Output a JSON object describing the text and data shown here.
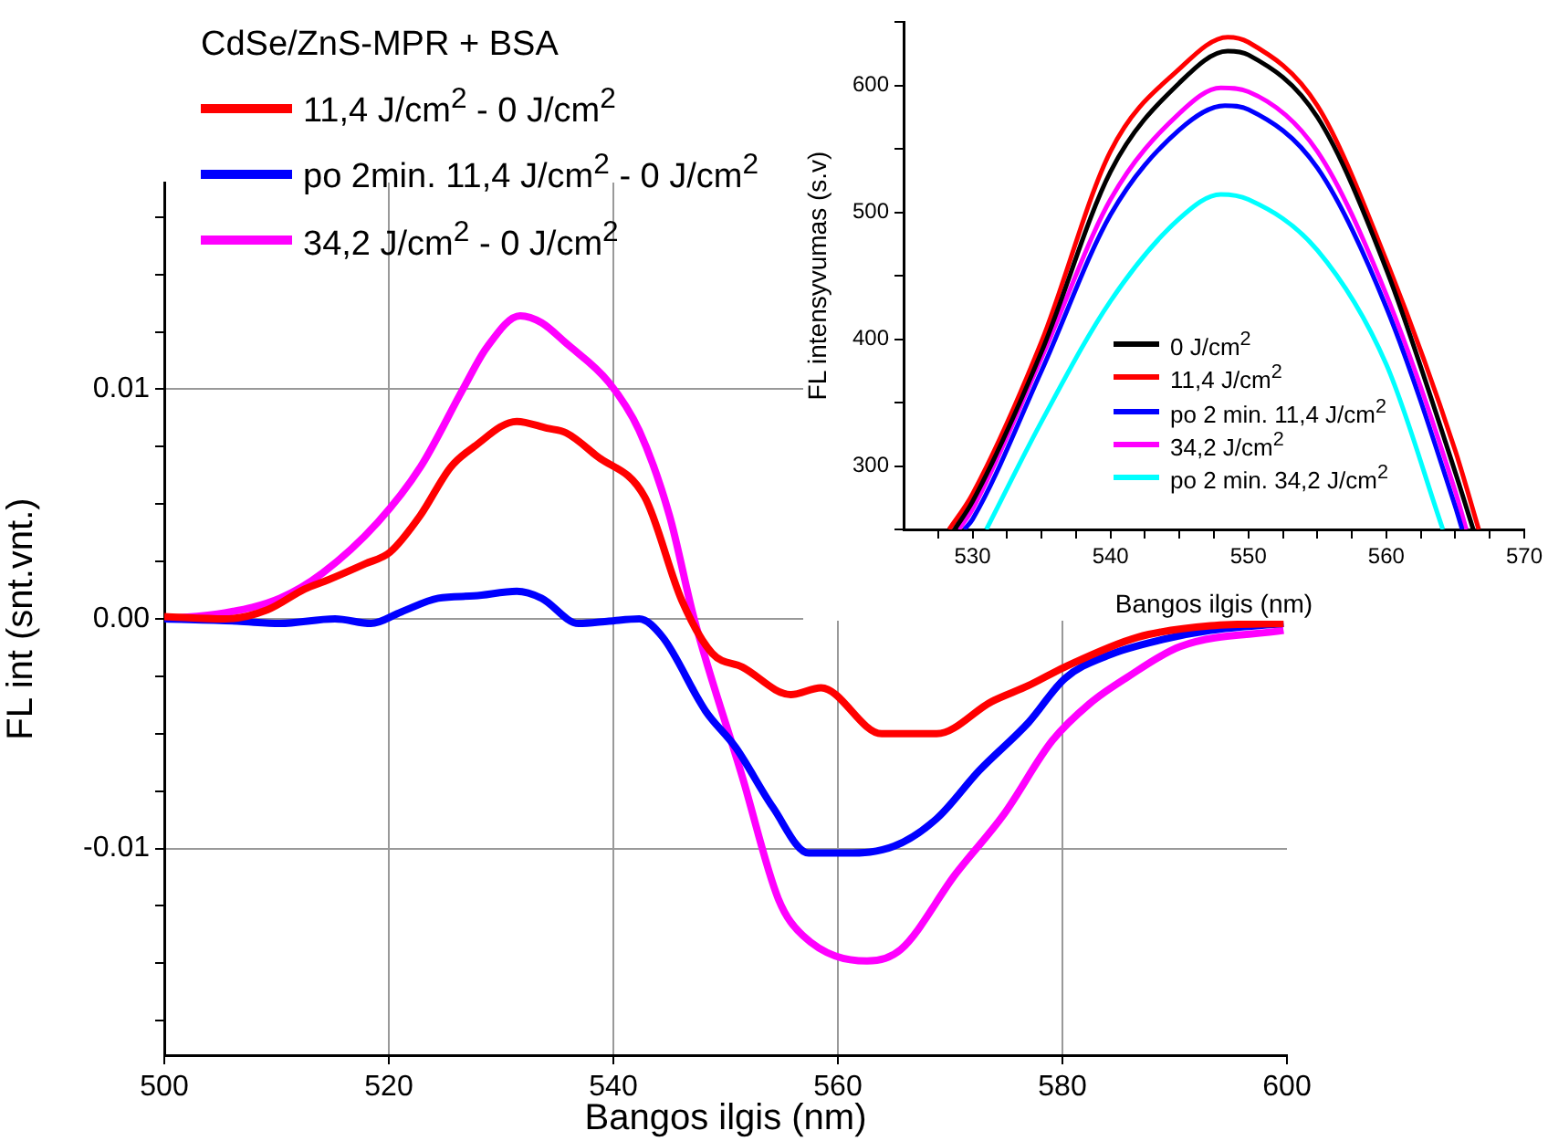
{
  "chart_data": [
    {
      "type": "line",
      "xlabel": "Bangos ilgis (nm)",
      "ylabel": "FL int (snt.vnt.)",
      "legend_title": "CdSe/ZnS-MPR + BSA",
      "legend": "top left",
      "grid": true,
      "marker": "none",
      "xlim": [
        500,
        600
      ],
      "xticks": [
        500,
        520,
        540,
        560,
        580,
        600
      ],
      "ylim": [
        -0.019,
        0.019
      ],
      "yticks": [
        {
          "value": -0.0175,
          "label": null
        },
        {
          "value": -0.015,
          "label": null
        },
        {
          "value": -0.0125,
          "label": null
        },
        {
          "value": -0.01,
          "label": "-0.01"
        },
        {
          "value": -0.0075,
          "label": null
        },
        {
          "value": -0.005,
          "label": null
        },
        {
          "value": -0.0025,
          "label": null
        },
        {
          "value": 0,
          "label": "0.00"
        },
        {
          "value": 0.0025,
          "label": null
        },
        {
          "value": 0.005,
          "label": null
        },
        {
          "value": 0.0075,
          "label": null
        },
        {
          "value": 0.01,
          "label": "0.01"
        },
        {
          "value": 0.0125,
          "label": null
        },
        {
          "value": 0.015,
          "label": null
        },
        {
          "value": 0.0175,
          "label": null
        }
      ],
      "series": [
        {
          "name": "11,4 J/cm$^{2}$ - 0 J/cm$^{2}$",
          "color": "#ff0000",
          "x": [
            500,
            505.4,
            509.2,
            512.5,
            514.6,
            517.9,
            520.1,
            522.8,
            525.5,
            527.6,
            531.4,
            534.1,
            535.8,
            538.5,
            542.8,
            546.1,
            548.8,
            551.5,
            555.8,
            558.5,
            563.9,
            568.8,
            573.7,
            577,
            580.2,
            586.7,
            593.2,
            599.7
          ],
          "values": [
            0.0001,
            0,
            0.0004,
            0.0013,
            0.0017,
            0.0024,
            0.0029,
            0.0045,
            0.0066,
            0.0075,
            0.0086,
            0.0083,
            0.0081,
            0.0071,
            0.0053,
            0.0008,
            -0.0015,
            -0.0021,
            -0.0033,
            -0.003,
            -0.005,
            -0.005,
            -0.0036,
            -0.0029,
            -0.0021,
            -0.0008,
            -0.0003,
            -0.0002
          ]
        },
        {
          "name": "po 2min. 11,4 J/cm$^{2}$ - 0 J/cm$^{2}$",
          "color": "#0000ff",
          "x": [
            500,
            506.5,
            510.3,
            515.2,
            518.4,
            521.1,
            524.4,
            527.6,
            531.4,
            533.6,
            536.9,
            539.6,
            542.3,
            544.4,
            548.2,
            550.9,
            554.2,
            557.4,
            560.7,
            565,
            568.8,
            572.6,
            577,
            580.2,
            584,
            588.9,
            593.2,
            599.7
          ],
          "values": [
            0,
            -0.0001,
            -0.0002,
            0,
            -0.0002,
            0.0003,
            0.0009,
            0.001,
            0.0012,
            0.0009,
            -0.0002,
            -0.0001,
            0,
            -0.0008,
            -0.004,
            -0.0056,
            -0.0082,
            -0.0102,
            -0.0102,
            -0.0099,
            -0.0087,
            -0.0066,
            -0.0045,
            -0.0026,
            -0.0016,
            -0.0009,
            -0.0005,
            -0.0002
          ]
        },
        {
          "name": "34,2 J/cm$^{2}$ - 0 J/cm$^{2}$",
          "color": "#ff00ff",
          "x": [
            500,
            505.4,
            510.3,
            514.1,
            519,
            522.8,
            526.6,
            528.7,
            531.7,
            533.6,
            535.8,
            539.6,
            542.3,
            545,
            547.2,
            551.5,
            554.7,
            556.9,
            562.6,
            565.6,
            570.5,
            574.8,
            579.1,
            582.4,
            585.6,
            590.5,
            599.7
          ],
          "values": [
            0,
            0.00026,
            0.0009,
            0.002,
            0.0042,
            0.0066,
            0.01,
            0.0118,
            0.0132,
            0.0129,
            0.012,
            0.0103,
            0.0082,
            0.0045,
            0,
            -0.0069,
            -0.0122,
            -0.0138,
            -0.0149,
            -0.0144,
            -0.0111,
            -0.0085,
            -0.0053,
            -0.0037,
            -0.0026,
            -0.0012,
            -0.0005
          ]
        }
      ]
    },
    {
      "type": "line",
      "xlabel": "Bangos ilgis (nm)",
      "ylabel": "FL intensyvumas (s.v)",
      "legend": "bottom",
      "grid": false,
      "marker": "none",
      "xlim": [
        525,
        570
      ],
      "xticks": [
        {
          "value": 527.5,
          "label": null
        },
        530,
        {
          "value": 532.5,
          "label": null
        },
        {
          "value": 535,
          "label": null
        },
        {
          "value": 537.5,
          "label": null
        },
        540,
        {
          "value": 542.5,
          "label": null
        },
        {
          "value": 545,
          "label": null
        },
        {
          "value": 547.5,
          "label": null
        },
        550,
        {
          "value": 552.5,
          "label": null
        },
        {
          "value": 555,
          "label": null
        },
        {
          "value": 557.5,
          "label": null
        },
        560,
        {
          "value": 562.5,
          "label": null
        },
        {
          "value": 565,
          "label": null
        },
        {
          "value": 567.5,
          "label": null
        },
        570
      ],
      "ylim": [
        250,
        650
      ],
      "yticks": [
        {
          "value": 250,
          "label": null
        },
        300,
        {
          "value": 350,
          "label": null
        },
        400,
        {
          "value": 450,
          "label": null
        },
        500,
        {
          "value": 550,
          "label": null
        },
        600,
        {
          "value": 650,
          "label": null
        }
      ],
      "series": [
        {
          "name": "0 J/cm$^{2}$",
          "color": "#000000",
          "x": [
            528.7,
            530,
            535,
            540,
            545,
            548.5,
            550,
            555,
            560,
            565,
            566.3
          ],
          "values": [
            250,
            272,
            390,
            532,
            602,
            627,
            624,
            575,
            455,
            295,
            250
          ]
        },
        {
          "name": "11,4 J/cm$^{2}$",
          "color": "#ff0000",
          "x": [
            528.3,
            530,
            535,
            540,
            545,
            548.5,
            550,
            555,
            560,
            565,
            566.7
          ],
          "values": [
            250,
            278,
            398,
            548,
            613,
            638,
            634,
            584,
            462,
            312,
            250
          ]
        },
        {
          "name": "po 2 min. 11,4 J/cm$^{2}$",
          "color": "#0000ff",
          "x": [
            529.4,
            530,
            535,
            540,
            545,
            548.3,
            550,
            555,
            560,
            565,
            565.5
          ],
          "values": [
            250,
            258,
            375,
            498,
            565,
            584,
            581,
            535,
            425,
            268,
            250
          ]
        },
        {
          "name": "34,2 J/cm$^{2}$",
          "color": "#ff00ff",
          "x": [
            529,
            530,
            535,
            540,
            545,
            548,
            550,
            555,
            560,
            565,
            565.8
          ],
          "values": [
            250,
            266,
            385,
            510,
            578,
            598,
            595,
            548,
            435,
            280,
            250
          ]
        },
        {
          "name": "po 2 min. 34,2 J/cm$^{2}$",
          "color": "#00ffff",
          "x": [
            531,
            535,
            540,
            545,
            548,
            550,
            555,
            560,
            564.1
          ],
          "values": [
            250,
            335,
            430,
            495,
            514,
            510,
            470,
            380,
            250
          ]
        }
      ]
    }
  ]
}
